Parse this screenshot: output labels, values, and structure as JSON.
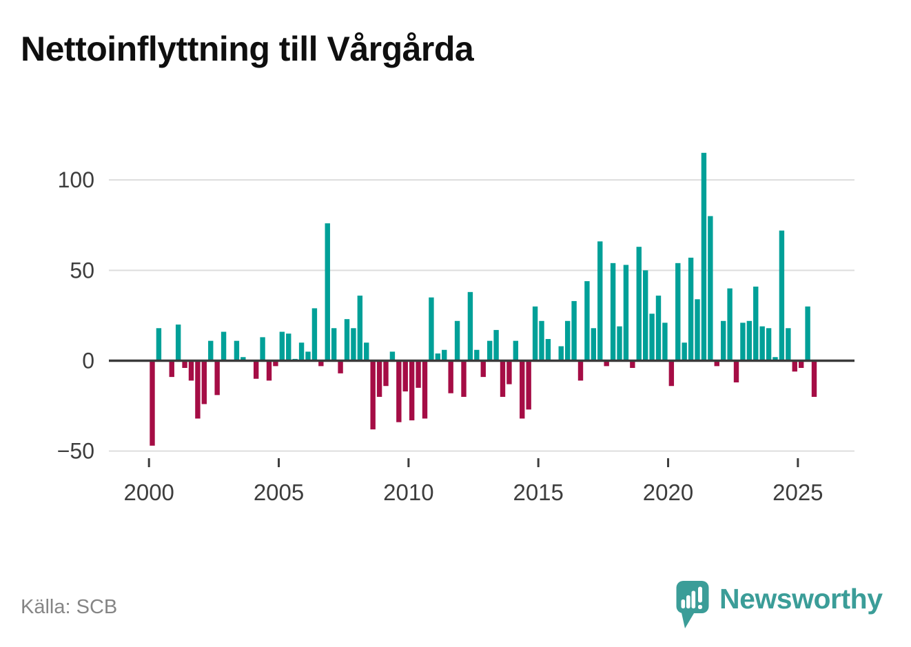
{
  "title": "Nettoinflyttning till Vårgårda",
  "source": {
    "label": "Källa: SCB"
  },
  "branding": {
    "name": "Newsworthy",
    "icon": "newsworthy-speech-bubble-bar-chart-icon"
  },
  "colors": {
    "positive_bar": "#00a098",
    "negative_bar": "#a50d45",
    "gridline": "#dddddd",
    "zero_line": "#3a3a3a",
    "axis_text": "#3d3d3d",
    "title_text": "#0f0f0f",
    "source_text": "#858585",
    "brand_teal": "#3b9d98"
  },
  "chart_data": {
    "type": "bar",
    "title": "Nettoinflyttning till Vårgårda",
    "frequency": "quarterly",
    "start_period": "2000-Q1",
    "end_period": "2025-Q3",
    "values": [
      -47,
      18,
      0,
      -9,
      20,
      -4,
      -11,
      -32,
      -24,
      11,
      -19,
      16,
      0,
      11,
      2,
      0,
      -10,
      13,
      -11,
      -3,
      16,
      15,
      1,
      10,
      5,
      29,
      -3,
      76,
      18,
      -7,
      23,
      18,
      36,
      10,
      -38,
      -20,
      -14,
      5,
      -34,
      -17,
      -33,
      -15,
      -32,
      35,
      4,
      6,
      -18,
      22,
      -20,
      38,
      6,
      -9,
      11,
      17,
      -20,
      -13,
      11,
      -32,
      -27,
      30,
      22,
      12,
      0,
      8,
      22,
      33,
      -11,
      44,
      18,
      66,
      -3,
      54,
      19,
      53,
      -4,
      63,
      50,
      26,
      36,
      21,
      -14,
      54,
      10,
      57,
      34,
      115,
      80,
      -3,
      22,
      40,
      -12,
      21,
      22,
      41,
      19,
      18,
      2,
      72,
      18,
      -6,
      -4,
      30,
      -20
    ],
    "positive_color": "#00a098",
    "negative_color": "#a50d45",
    "yticks": [
      100,
      50,
      0,
      -50
    ],
    "ytick_labels": [
      "100",
      "50",
      "0",
      "−50"
    ],
    "xticks": [
      2000,
      2005,
      2010,
      2015,
      2020,
      2025
    ],
    "xtick_labels": [
      "2000",
      "2005",
      "2010",
      "2015",
      "2020",
      "2025"
    ],
    "ylim": [
      -50,
      115
    ],
    "grid": "horizontal",
    "legend": "none"
  }
}
